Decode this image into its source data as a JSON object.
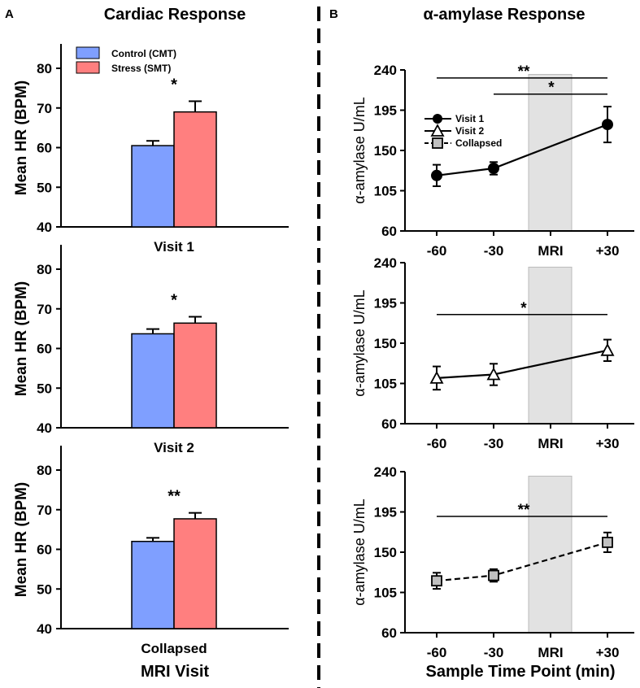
{
  "panel_labels": {
    "a": "A",
    "b": "B"
  },
  "chart_data": [
    {
      "type": "bar",
      "title": "Cardiac Response",
      "xlabel": "MRI Visit",
      "ylabel": "Mean HR (BPM)",
      "ylim": [
        40,
        85
      ],
      "yticks": [
        40,
        50,
        60,
        70,
        80
      ],
      "legend": {
        "placement": "top-left",
        "entries": [
          "Control (CMT)",
          "Stress (SMT)"
        ]
      },
      "colors": {
        "control": "#7f9fff",
        "stress": "#ff7f7f"
      },
      "panels": [
        {
          "category": "Visit 1",
          "significance": "*",
          "series": [
            {
              "name": "Control (CMT)",
              "value": 60.5,
              "error": 1.2
            },
            {
              "name": "Stress (SMT)",
              "value": 69.0,
              "error": 2.7
            }
          ]
        },
        {
          "category": "Visit 2",
          "significance": "*",
          "series": [
            {
              "name": "Control (CMT)",
              "value": 63.7,
              "error": 1.2
            },
            {
              "name": "Stress (SMT)",
              "value": 66.4,
              "error": 1.6
            }
          ]
        },
        {
          "category": "Collapsed",
          "significance": "**",
          "series": [
            {
              "name": "Control (CMT)",
              "value": 62.0,
              "error": 0.9
            },
            {
              "name": "Stress (SMT)",
              "value": 67.7,
              "error": 1.5
            }
          ]
        }
      ]
    },
    {
      "type": "line",
      "title": "α-amylase Response",
      "xlabel": "Sample Time Point (min)",
      "ylabel": "α-amylase U/mL",
      "ylim": [
        60,
        240
      ],
      "yticks": [
        60,
        105,
        150,
        195,
        240
      ],
      "categories": [
        "-60",
        "-30",
        "MRI",
        "+30"
      ],
      "shaded_region": "MRI",
      "legend": {
        "placement": "top-left",
        "entries": [
          "Visit 1",
          "Visit 2",
          "Collapsed"
        ]
      },
      "panels": [
        {
          "name": "Visit 1",
          "marker": "circle",
          "dashed": false,
          "x": [
            "-60",
            "-30",
            "+30"
          ],
          "values": [
            122,
            130,
            179
          ],
          "errors": [
            12,
            7,
            20
          ],
          "significance": [
            {
              "from": "-60",
              "to": "+30",
              "label": "**",
              "y": 231
            },
            {
              "from": "-30",
              "to": "+30",
              "label": "*",
              "y": 213
            }
          ]
        },
        {
          "name": "Visit 2",
          "marker": "triangle",
          "dashed": false,
          "x": [
            "-60",
            "-30",
            "+30"
          ],
          "values": [
            111,
            115,
            142
          ],
          "errors": [
            13,
            12,
            12
          ],
          "significance": [
            {
              "from": "-60",
              "to": "+30",
              "label": "*",
              "y": 182
            }
          ]
        },
        {
          "name": "Collapsed",
          "marker": "square",
          "dashed": true,
          "x": [
            "-60",
            "-30",
            "+30"
          ],
          "values": [
            118,
            124,
            161
          ],
          "errors": [
            9,
            7,
            11
          ],
          "significance": [
            {
              "from": "-60",
              "to": "+30",
              "label": "**",
              "y": 190
            }
          ]
        }
      ]
    }
  ]
}
